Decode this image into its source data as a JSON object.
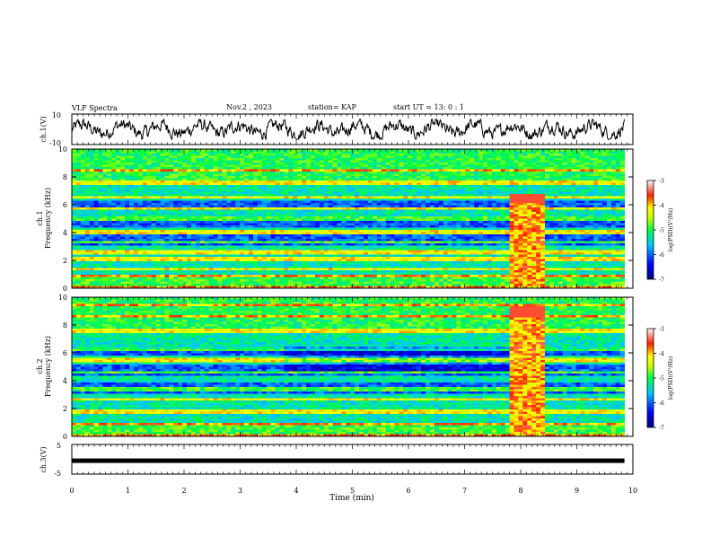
{
  "header": {
    "title": "VLF Spectra",
    "date": "Nov.2 , 2023",
    "station": "station= KAP",
    "start": "start UT = 13: 0 : 1"
  },
  "chart_data": [
    {
      "type": "line",
      "ylabel": "ch.1(V)",
      "xlim": [
        0,
        10
      ],
      "ylim": [
        -10,
        10
      ],
      "yticks": [
        "10",
        "-10"
      ],
      "note": "noisy waveform between about -5 and 5 V"
    },
    {
      "type": "heatmap",
      "ylabel": "ch.1",
      "ylabel2": "Frequency (kHz)",
      "xlim": [
        0,
        10
      ],
      "ylim": [
        0,
        10
      ],
      "yticks": [
        "0",
        "2",
        "4",
        "6",
        "8",
        "10"
      ],
      "colorbar": {
        "label": "log(PSD)(V²/Hz)",
        "ticks": [
          "-3",
          "-4",
          "-5",
          "-6",
          "-7"
        ],
        "range": [
          -7,
          -3
        ]
      },
      "bands_khz": [
        0.1,
        0.9,
        1.4,
        2.1,
        2.6,
        3.3,
        4.0,
        5.0,
        5.7,
        6.5,
        7.6,
        8.5
      ],
      "burst": {
        "x": [
          7.8,
          8.4
        ],
        "f": [
          0,
          6.8
        ]
      },
      "data_end_min": 9.85
    },
    {
      "type": "heatmap",
      "ylabel": "ch.2",
      "ylabel2": "Frequency (kHz)",
      "xlim": [
        0,
        10
      ],
      "ylim": [
        0,
        10
      ],
      "yticks": [
        "0",
        "2",
        "4",
        "6",
        "8",
        "10"
      ],
      "colorbar": {
        "label": "log(PSD)(V²/Hz)",
        "ticks": [
          "-3",
          "-4",
          "-5",
          "-6",
          "-7"
        ],
        "range": [
          -7,
          -3
        ]
      },
      "bands_khz": [
        0.1,
        0.9,
        1.8,
        2.7,
        3.4,
        4.6,
        5.5,
        6.2,
        7.6,
        8.6,
        9.4
      ],
      "burst": {
        "x": [
          7.8,
          8.4
        ],
        "f": [
          0,
          9.3
        ]
      },
      "data_end_min": 9.85
    },
    {
      "type": "line",
      "ylabel": "ch.3(V)",
      "xlim": [
        0,
        10
      ],
      "ylim": [
        -5,
        5
      ],
      "yticks": [
        "5",
        "0",
        "-5"
      ],
      "value": -0.5,
      "xlabel": "Time (min)",
      "xticks": [
        "0",
        "1",
        "2",
        "3",
        "4",
        "5",
        "6",
        "7",
        "8",
        "9",
        "10"
      ]
    }
  ]
}
